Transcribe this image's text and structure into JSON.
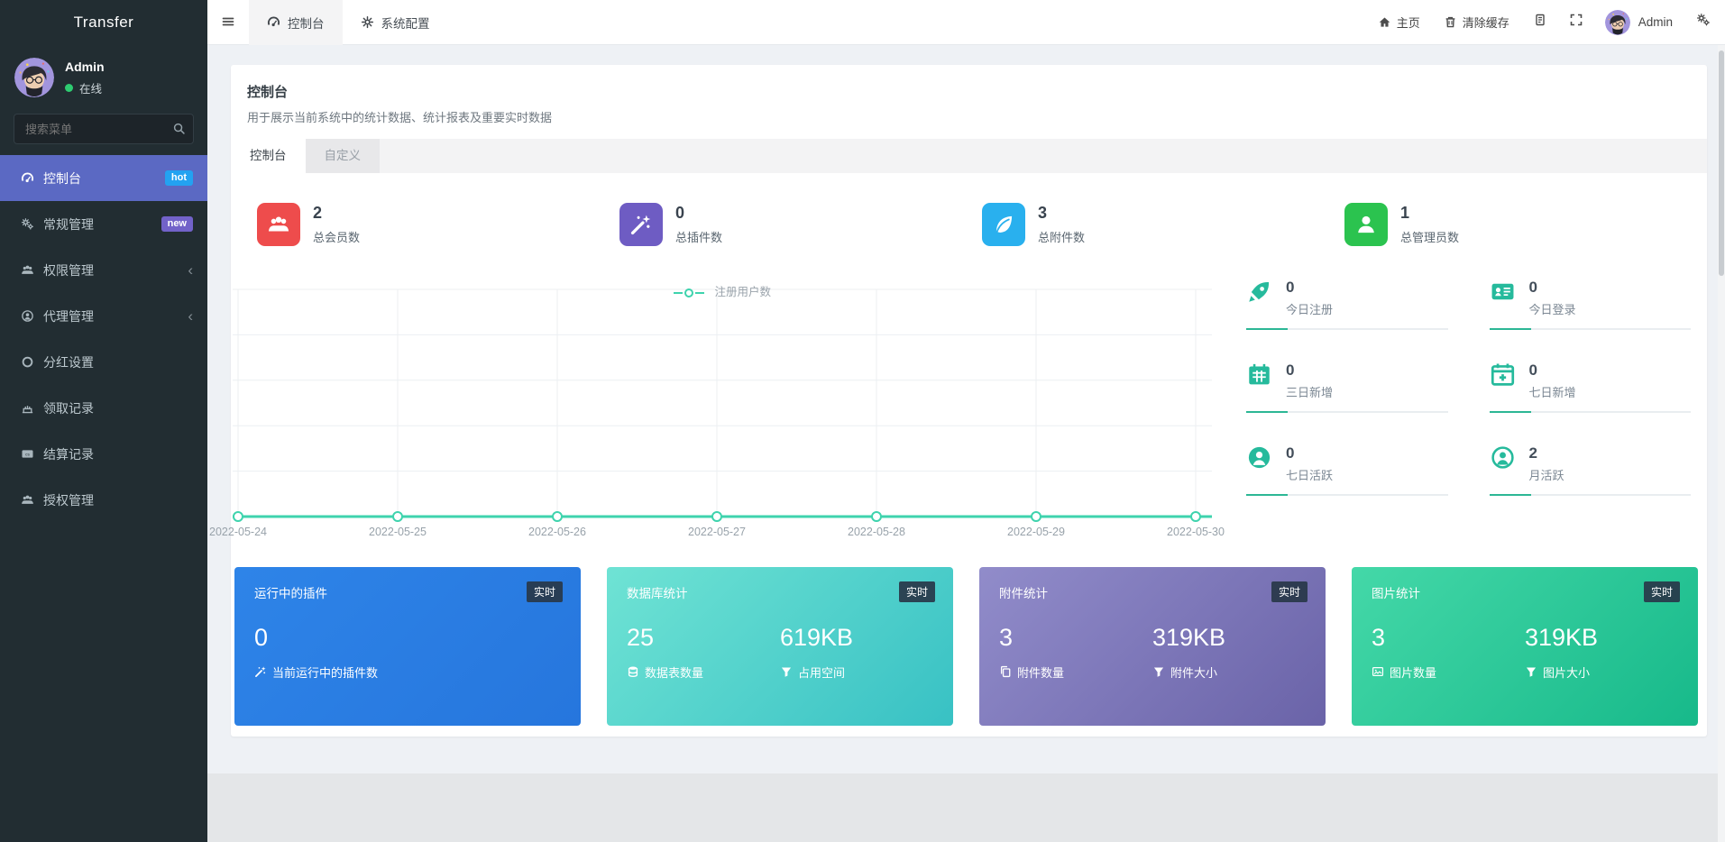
{
  "sidebar": {
    "brand": "Transfer",
    "user": {
      "name": "Admin",
      "status": "在线",
      "status_color": "#2ecc71"
    },
    "search_placeholder": "搜索菜单",
    "items": [
      {
        "label": "控制台",
        "icon": "gauge",
        "badge": "hot",
        "badge_color": "#23a2f1",
        "active": true
      },
      {
        "label": "常规管理",
        "icon": "cogs",
        "badge": "new",
        "badge_color": "#7262c9"
      },
      {
        "label": "权限管理",
        "icon": "users",
        "chevron": true
      },
      {
        "label": "代理管理",
        "icon": "user-o",
        "chevron": true
      },
      {
        "label": "分红设置",
        "icon": "circle-o"
      },
      {
        "label": "领取记录",
        "icon": "chart"
      },
      {
        "label": "结算记录",
        "icon": "cc"
      },
      {
        "label": "授权管理",
        "icon": "users"
      }
    ]
  },
  "topbar": {
    "tabs": [
      {
        "label": "控制台",
        "icon": "gauge",
        "active": true
      },
      {
        "label": "系统配置",
        "icon": "gear"
      }
    ],
    "home_label": "主页",
    "clear_cache_label": "清除缓存",
    "user_name": "Admin"
  },
  "page": {
    "title": "控制台",
    "subtitle": "用于展示当前系统中的统计数据、统计报表及重要实时数据",
    "tabs": [
      {
        "label": "控制台",
        "active": true
      },
      {
        "label": "自定义"
      }
    ]
  },
  "summary_tiles": [
    {
      "value": "2",
      "label": "总会员数",
      "icon": "users",
      "color": "#ee4c4c"
    },
    {
      "value": "0",
      "label": "总插件数",
      "icon": "wand",
      "color": "#6e5cc3"
    },
    {
      "value": "3",
      "label": "总附件数",
      "icon": "leaf",
      "color": "#29b0ee"
    },
    {
      "value": "1",
      "label": "总管理员数",
      "icon": "user",
      "color": "#2bc34f"
    }
  ],
  "chart_data": {
    "type": "line",
    "title": "",
    "legend": [
      "注册用户数"
    ],
    "legend_position": "top-center",
    "grid": true,
    "x": [
      "2022-05-24",
      "2022-05-25",
      "2022-05-26",
      "2022-05-27",
      "2022-05-28",
      "2022-05-29",
      "2022-05-30"
    ],
    "series": [
      {
        "name": "注册用户数",
        "values": [
          0,
          0,
          0,
          0,
          0,
          0,
          0
        ]
      }
    ],
    "ylim": [
      0,
      1
    ],
    "line_color": "#3ed3ad"
  },
  "mini_stats": [
    {
      "value": "0",
      "label": "今日注册",
      "icon": "rocket"
    },
    {
      "value": "0",
      "label": "今日登录",
      "icon": "idcard"
    },
    {
      "value": "0",
      "label": "三日新增",
      "icon": "cal"
    },
    {
      "value": "0",
      "label": "七日新增",
      "icon": "cal-plus"
    },
    {
      "value": "0",
      "label": "七日活跃",
      "icon": "user-circle"
    },
    {
      "value": "2",
      "label": "月活跃",
      "icon": "user-o"
    }
  ],
  "info_cards": [
    {
      "title": "运行中的插件",
      "badge": "实时",
      "gradient": [
        "#2e84e8",
        "#2676dd"
      ],
      "metrics": [
        {
          "value": "0",
          "label": "当前运行中的插件数",
          "icon": "wand"
        }
      ]
    },
    {
      "title": "数据库统计",
      "badge": "实时",
      "gradient": [
        "#6fe3d4",
        "#38c1c4"
      ],
      "metrics": [
        {
          "value": "25",
          "label": "数据表数量",
          "icon": "db"
        },
        {
          "value": "619KB",
          "label": "占用空间",
          "icon": "filter"
        }
      ]
    },
    {
      "title": "附件统计",
      "badge": "实时",
      "gradient": [
        "#918cca",
        "#6a63a8"
      ],
      "metrics": [
        {
          "value": "3",
          "label": "附件数量",
          "icon": "copy"
        },
        {
          "value": "319KB",
          "label": "附件大小",
          "icon": "filter"
        }
      ]
    },
    {
      "title": "图片统计",
      "badge": "实时",
      "gradient": [
        "#44d8a8",
        "#17b98a"
      ],
      "metrics": [
        {
          "value": "3",
          "label": "图片数量",
          "icon": "image"
        },
        {
          "value": "319KB",
          "label": "图片大小",
          "icon": "filter"
        }
      ]
    }
  ]
}
